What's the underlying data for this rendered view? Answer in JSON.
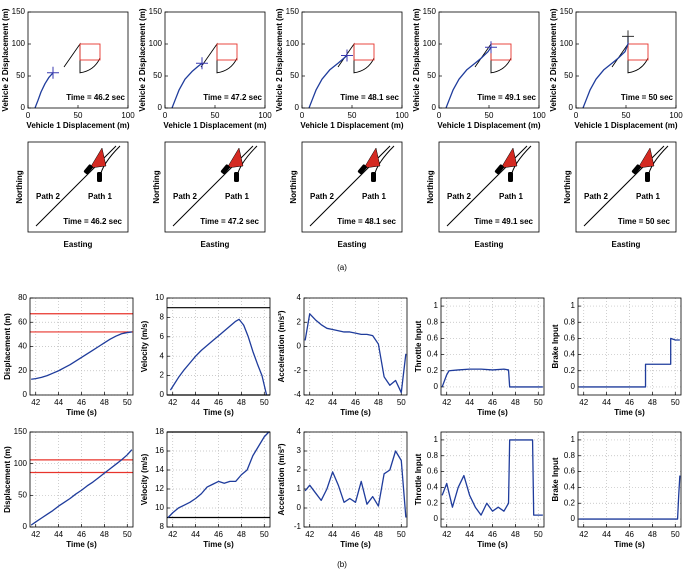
{
  "panel_labels": [
    "(a)",
    "(b)"
  ],
  "chart_data": [
    {
      "type": "line",
      "xlabel": "Vehicle 1 Displacement (m)",
      "ylabel": "Vehicle 2 Displacement (m)",
      "xlim": [
        0,
        100
      ],
      "xticks": [
        0,
        50,
        100
      ],
      "ylim": [
        0,
        150
      ],
      "yticks": [
        0,
        50,
        100,
        150
      ],
      "grid": false,
      "annotation": "Time = 46.2 sec",
      "x": [
        7,
        10,
        13,
        17,
        21,
        25
      ],
      "series": [
        {
          "color": "#1f3c9c",
          "values": [
            0,
            12,
            25,
            38,
            48,
            55
          ]
        }
      ],
      "marker": {
        "x": 25,
        "y": 55,
        "color": "#3a3ab0"
      }
    },
    {
      "type": "line",
      "xlabel": "Vehicle 1 Displacement (m)",
      "ylabel": "Vehicle 2 Displacement (m)",
      "xlim": [
        0,
        100
      ],
      "xticks": [
        0,
        50,
        100
      ],
      "ylim": [
        0,
        150
      ],
      "yticks": [
        0,
        50,
        100,
        150
      ],
      "grid": false,
      "annotation": "Time = 47.2 sec",
      "x": [
        7,
        10,
        14,
        20,
        27,
        33,
        37
      ],
      "series": [
        {
          "color": "#1f3c9c",
          "values": [
            0,
            12,
            28,
            45,
            57,
            65,
            70
          ]
        }
      ],
      "marker": {
        "x": 37,
        "y": 70,
        "color": "#3a3ab0"
      }
    },
    {
      "type": "line",
      "xlabel": "Vehicle 1 Displacement (m)",
      "ylabel": "Vehicle 2 Displacement (m)",
      "xlim": [
        0,
        100
      ],
      "xticks": [
        0,
        50,
        100
      ],
      "ylim": [
        0,
        150
      ],
      "yticks": [
        0,
        50,
        100,
        150
      ],
      "grid": false,
      "annotation": "Time = 48.1 sec",
      "x": [
        7,
        10,
        14,
        20,
        28,
        36,
        42,
        45
      ],
      "series": [
        {
          "color": "#1f3c9c",
          "values": [
            0,
            12,
            28,
            45,
            60,
            70,
            78,
            82
          ]
        }
      ],
      "marker": {
        "x": 45,
        "y": 82,
        "color": "#3a3ab0"
      }
    },
    {
      "type": "line",
      "xlabel": "Vehicle 1 Displacement (m)",
      "ylabel": "Vehicle 2 Displacement (m)",
      "xlim": [
        0,
        100
      ],
      "xticks": [
        0,
        50,
        100
      ],
      "ylim": [
        0,
        150
      ],
      "yticks": [
        0,
        50,
        100,
        150
      ],
      "grid": false,
      "annotation": "Time = 49.1 sec",
      "x": [
        7,
        10,
        14,
        20,
        28,
        36,
        43,
        49,
        52
      ],
      "series": [
        {
          "color": "#1f3c9c",
          "values": [
            0,
            12,
            28,
            45,
            60,
            70,
            79,
            88,
            95
          ]
        }
      ],
      "marker": {
        "x": 52,
        "y": 95,
        "color": "#3a3ab0"
      }
    },
    {
      "type": "line",
      "xlabel": "Vehicle 1 Displacement (m)",
      "ylabel": "Vehicle 2 Displacement (m)",
      "xlim": [
        0,
        100
      ],
      "xticks": [
        0,
        50,
        100
      ],
      "ylim": [
        0,
        150
      ],
      "yticks": [
        0,
        50,
        100,
        150
      ],
      "grid": false,
      "annotation": "Time = 50 sec",
      "x": [
        7,
        10,
        14,
        20,
        28,
        36,
        43,
        49,
        52,
        52
      ],
      "series": [
        {
          "color": "#1f3c9c",
          "values": [
            0,
            12,
            28,
            45,
            60,
            70,
            79,
            88,
            100,
            112
          ]
        }
      ],
      "marker": {
        "x": 52,
        "y": 112,
        "color": "#333333"
      }
    },
    {
      "type": "diagram",
      "xlabel": "Easting",
      "ylabel": "Northing",
      "labels": [
        "Path 2",
        "Path 1",
        "Time = 46.2 sec"
      ]
    },
    {
      "type": "diagram",
      "xlabel": "Easting",
      "ylabel": "Northing",
      "labels": [
        "Path 2",
        "Path 1",
        "Time = 47.2 sec"
      ]
    },
    {
      "type": "diagram",
      "xlabel": "Easting",
      "ylabel": "Northing",
      "labels": [
        "Path 2",
        "Path 1",
        "Time = 48.1 sec"
      ]
    },
    {
      "type": "diagram",
      "xlabel": "Easting",
      "ylabel": "Northing",
      "labels": [
        "Path 2",
        "Path 1",
        "Time = 49.1 sec"
      ]
    },
    {
      "type": "diagram",
      "xlabel": "Easting",
      "ylabel": "Northing",
      "labels": [
        "Path 2",
        "Path 1",
        "Time = 50 sec"
      ]
    },
    {
      "type": "line",
      "xlabel": "Time (s)",
      "ylabel": "Displacement (m)",
      "xlim": [
        41.5,
        50.5
      ],
      "xticks": [
        42,
        44,
        46,
        48,
        50
      ],
      "ylim": [
        0,
        80
      ],
      "yticks": [
        0,
        20,
        40,
        60,
        80
      ],
      "grid": true,
      "x": [
        41.6,
        42,
        42.5,
        43,
        43.5,
        44,
        44.5,
        45,
        45.5,
        46,
        46.5,
        47,
        47.5,
        48,
        48.5,
        49,
        49.5,
        50,
        50.4
      ],
      "series": [
        {
          "color": "#1f3c9c",
          "values": [
            13,
            13.5,
            14.5,
            16,
            18,
            20,
            22.5,
            25,
            28,
            31,
            34,
            37,
            40,
            43,
            46,
            48.5,
            50.5,
            51.5,
            52
          ]
        }
      ],
      "hlines": [
        {
          "value": 67,
          "color": "#e8342c"
        },
        {
          "value": 52,
          "color": "#e8342c"
        }
      ]
    },
    {
      "type": "line",
      "xlabel": "Time (s)",
      "ylabel": "Velocity (m/s)",
      "xlim": [
        41.5,
        50.5
      ],
      "xticks": [
        42,
        44,
        46,
        48,
        50
      ],
      "ylim": [
        0,
        10
      ],
      "yticks": [
        0,
        2,
        4,
        6,
        8,
        10
      ],
      "grid": true,
      "x": [
        41.8,
        42.5,
        43,
        43.5,
        44,
        44.5,
        45,
        45.5,
        46,
        46.5,
        47,
        47.5,
        47.8,
        48.2,
        48.6,
        49,
        49.4,
        49.8,
        50.2
      ],
      "series": [
        {
          "color": "#1f3c9c",
          "values": [
            0.5,
            1.8,
            2.6,
            3.3,
            4,
            4.6,
            5.1,
            5.6,
            6.1,
            6.6,
            7.1,
            7.6,
            7.8,
            7.2,
            6,
            4.5,
            3.2,
            2,
            0
          ]
        }
      ],
      "hlines": [
        {
          "value": 9,
          "color": "#000000"
        },
        {
          "value": 0,
          "color": "#000000"
        }
      ]
    },
    {
      "type": "line",
      "xlabel": "Time (s)",
      "ylabel": "Acceleration (m/s²)",
      "xlim": [
        41.5,
        50.5
      ],
      "xticks": [
        42,
        44,
        46,
        48,
        50
      ],
      "ylim": [
        -4,
        4
      ],
      "yticks": [
        -4,
        -2,
        0,
        2,
        4
      ],
      "grid": true,
      "x": [
        41.6,
        42,
        42.5,
        43,
        43.5,
        44,
        44.5,
        45,
        45.5,
        46,
        46.5,
        47,
        47.5,
        48,
        48.5,
        49,
        49.5,
        50,
        50.4
      ],
      "series": [
        {
          "color": "#1f3c9c",
          "values": [
            0.5,
            2.7,
            2.2,
            1.8,
            1.5,
            1.4,
            1.3,
            1.2,
            1.2,
            1.1,
            1,
            1,
            0.9,
            0.2,
            -2.5,
            -3.2,
            -2.8,
            -3.8,
            -0.6
          ]
        }
      ]
    },
    {
      "type": "line",
      "xlabel": "Time (s)",
      "ylabel": "Throttle Input",
      "xlim": [
        41.5,
        50.5
      ],
      "xticks": [
        42,
        44,
        46,
        48,
        50
      ],
      "ylim": [
        -0.1,
        1.1
      ],
      "yticks": [
        0,
        0.2,
        0.4,
        0.6,
        0.8,
        1
      ],
      "grid": true,
      "x": [
        41.6,
        42,
        42.2,
        43,
        44,
        45,
        46,
        47,
        47.4,
        47.5,
        48,
        49,
        50,
        50.4
      ],
      "series": [
        {
          "color": "#1f3c9c",
          "values": [
            0,
            0.15,
            0.2,
            0.21,
            0.22,
            0.22,
            0.21,
            0.22,
            0.21,
            0,
            0,
            0,
            0,
            0
          ]
        }
      ]
    },
    {
      "type": "line",
      "xlabel": "Time (s)",
      "ylabel": "Brake Input",
      "xlim": [
        41.5,
        50.5
      ],
      "xticks": [
        42,
        44,
        46,
        48,
        50
      ],
      "ylim": [
        -0.1,
        1.1
      ],
      "yticks": [
        0,
        0.2,
        0.4,
        0.6,
        0.8,
        1
      ],
      "grid": true,
      "x": [
        41.6,
        47.4,
        47.4,
        49.6,
        49.6,
        50,
        50.4
      ],
      "series": [
        {
          "color": "#1f3c9c",
          "values": [
            0,
            0,
            0.28,
            0.28,
            0.6,
            0.58,
            0.58
          ]
        }
      ]
    },
    {
      "type": "line",
      "xlabel": "Time (s)",
      "ylabel": "Displacement (m)",
      "xlim": [
        41.5,
        50.5
      ],
      "xticks": [
        42,
        44,
        46,
        48,
        50
      ],
      "ylim": [
        0,
        150
      ],
      "yticks": [
        0,
        50,
        100,
        150
      ],
      "grid": true,
      "x": [
        41.6,
        42,
        42.5,
        43,
        43.5,
        44,
        44.5,
        45,
        45.5,
        46,
        46.5,
        47,
        47.5,
        48,
        48.5,
        49,
        49.5,
        50,
        50.4
      ],
      "series": [
        {
          "color": "#1f3c9c",
          "values": [
            3,
            8,
            14,
            20,
            26,
            33,
            39,
            45,
            52,
            58,
            65,
            71,
            78,
            85,
            92,
            99,
            106,
            114,
            122
          ]
        }
      ],
      "hlines": [
        {
          "value": 106,
          "color": "#e8342c"
        },
        {
          "value": 86,
          "color": "#e8342c"
        }
      ]
    },
    {
      "type": "line",
      "xlabel": "Time (s)",
      "ylabel": "Velocity (m/s)",
      "xlim": [
        41.5,
        50.5
      ],
      "xticks": [
        42,
        44,
        46,
        48,
        50
      ],
      "ylim": [
        8,
        18
      ],
      "yticks": [
        8,
        10,
        12,
        14,
        16,
        18
      ],
      "grid": true,
      "x": [
        41.6,
        42,
        42.5,
        43,
        43.5,
        44,
        44.5,
        45,
        45.5,
        46,
        46.5,
        47,
        47.5,
        48,
        48.5,
        49,
        49.5,
        50,
        50.4
      ],
      "series": [
        {
          "color": "#1f3c9c",
          "values": [
            9,
            9.5,
            10,
            10.3,
            10.6,
            11,
            11.5,
            12.2,
            12.5,
            12.8,
            12.6,
            12.8,
            12.8,
            13.5,
            14,
            15.5,
            16.5,
            17.5,
            18
          ]
        }
      ],
      "hlines": [
        {
          "value": 18,
          "color": "#000000"
        },
        {
          "value": 9,
          "color": "#000000"
        }
      ]
    },
    {
      "type": "line",
      "xlabel": "Time (s)",
      "ylabel": "Acceleration (m/s²)",
      "xlim": [
        41.5,
        50.5
      ],
      "xticks": [
        42,
        44,
        46,
        48,
        50
      ],
      "ylim": [
        -1,
        4
      ],
      "yticks": [
        -1,
        0,
        1,
        2,
        3,
        4
      ],
      "grid": true,
      "x": [
        41.6,
        42,
        42.5,
        43,
        43.5,
        44,
        44.5,
        45,
        45.5,
        46,
        46.5,
        47,
        47.5,
        48,
        48.5,
        49,
        49.5,
        50,
        50.4
      ],
      "series": [
        {
          "color": "#1f3c9c",
          "values": [
            0.9,
            1.2,
            0.8,
            0.4,
            1,
            1.9,
            1.2,
            0.3,
            0.5,
            0.3,
            1.4,
            0.2,
            0.6,
            0.1,
            1.8,
            2,
            3,
            2.5,
            -0.5
          ]
        }
      ]
    },
    {
      "type": "line",
      "xlabel": "Time (s)",
      "ylabel": "Throttle Input",
      "xlim": [
        41.5,
        50.5
      ],
      "xticks": [
        42,
        44,
        46,
        48,
        50
      ],
      "ylim": [
        -0.1,
        1.1
      ],
      "yticks": [
        0,
        0.2,
        0.4,
        0.6,
        0.8,
        1
      ],
      "grid": true,
      "x": [
        41.6,
        42,
        42.5,
        43,
        43.5,
        44,
        44.5,
        45,
        45.5,
        46,
        46.5,
        47,
        47.4,
        47.5,
        49.5,
        49.6,
        50,
        50.4
      ],
      "series": [
        {
          "color": "#1f3c9c",
          "values": [
            0.3,
            0.45,
            0.15,
            0.4,
            0.55,
            0.3,
            0.15,
            0.05,
            0.2,
            0.1,
            0.15,
            0.1,
            0.2,
            1,
            1,
            0.05,
            0.05,
            0.05
          ]
        }
      ]
    },
    {
      "type": "line",
      "xlabel": "Time (s)",
      "ylabel": "Brake Input",
      "xlim": [
        41.5,
        50.5
      ],
      "xticks": [
        42,
        44,
        46,
        48,
        50
      ],
      "ylim": [
        -0.1,
        1.1
      ],
      "yticks": [
        0,
        0.2,
        0.4,
        0.6,
        0.8,
        1
      ],
      "grid": true,
      "x": [
        41.6,
        50.2,
        50.3,
        50.4
      ],
      "series": [
        {
          "color": "#1f3c9c",
          "values": [
            0,
            0,
            0.3,
            0.55
          ]
        }
      ]
    }
  ]
}
